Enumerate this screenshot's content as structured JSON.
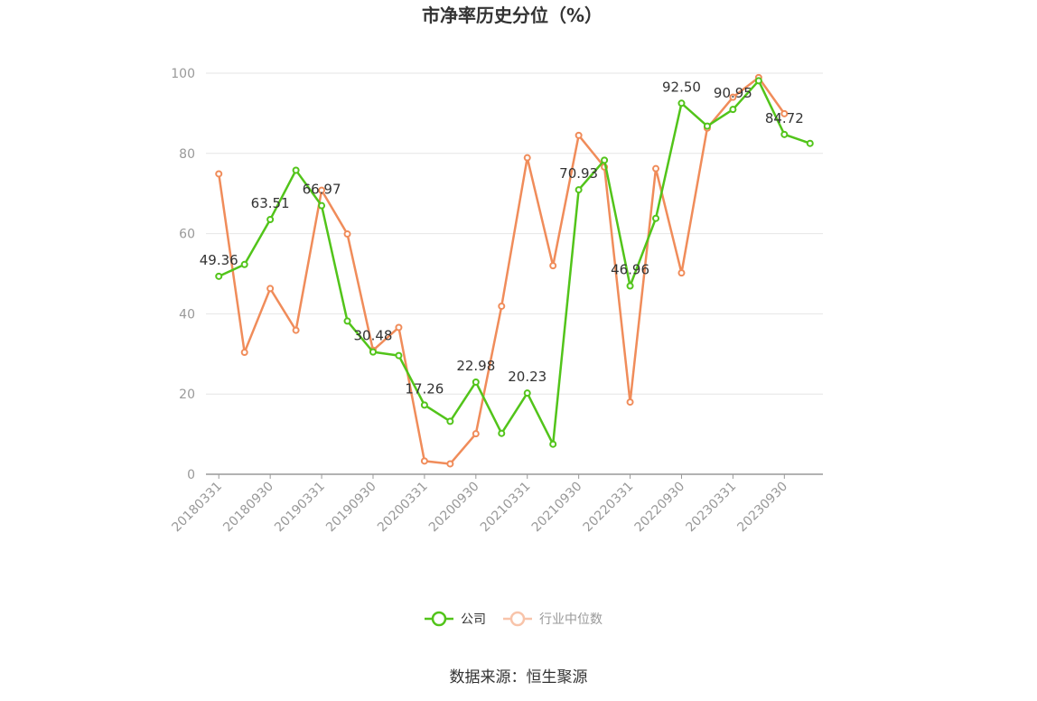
{
  "chart_data": {
    "type": "line",
    "title": "市净率历史分位（%）",
    "xlabel": "",
    "ylabel": "",
    "ylim": [
      0,
      100
    ],
    "yticks": [
      0,
      20,
      40,
      60,
      80,
      100
    ],
    "x": [
      "20180331",
      "20180630",
      "20180930",
      "20181231",
      "20190331",
      "20190630",
      "20190930",
      "20191231",
      "20200331",
      "20200630",
      "20200930",
      "20201231",
      "20210331",
      "20210630",
      "20210930",
      "20211231",
      "20220331",
      "20220630",
      "20220930",
      "20221231",
      "20230331",
      "20230630",
      "20230930",
      "20231231"
    ],
    "xtick_labels": [
      "20180331",
      "20180930",
      "20190331",
      "20190930",
      "20200331",
      "20200930",
      "20210331",
      "20210930",
      "20220331",
      "20220930",
      "20230331",
      "20230930"
    ],
    "series": [
      {
        "name": "公司",
        "color": "#52c41a",
        "values": [
          49.36,
          52.3,
          63.51,
          75.8,
          66.97,
          38.2,
          30.48,
          29.6,
          17.26,
          13.2,
          22.98,
          10.2,
          20.23,
          7.5,
          70.93,
          78.3,
          46.96,
          63.8,
          92.5,
          86.8,
          90.95,
          98.1,
          84.72,
          82.5
        ],
        "data_labels": {
          "0": "49.36",
          "2": "63.51",
          "4": "66.97",
          "6": "30.48",
          "8": "17.26",
          "10": "22.98",
          "12": "20.23",
          "14": "70.93",
          "16": "46.96",
          "18": "92.50",
          "20": "90.95",
          "22": "84.72"
        }
      },
      {
        "name": "行业中位数",
        "color": "#f08c5a",
        "values": [
          74.9,
          30.4,
          46.3,
          35.9,
          70.8,
          59.9,
          30.9,
          36.6,
          3.3,
          2.6,
          10.1,
          41.9,
          78.9,
          52.0,
          84.5,
          76.6,
          18.0,
          76.2,
          50.2,
          86.3,
          94.0,
          98.9,
          89.9,
          null
        ]
      }
    ],
    "legend": {
      "position": "bottom"
    },
    "grid": true
  },
  "source": "数据来源：恒生聚源"
}
